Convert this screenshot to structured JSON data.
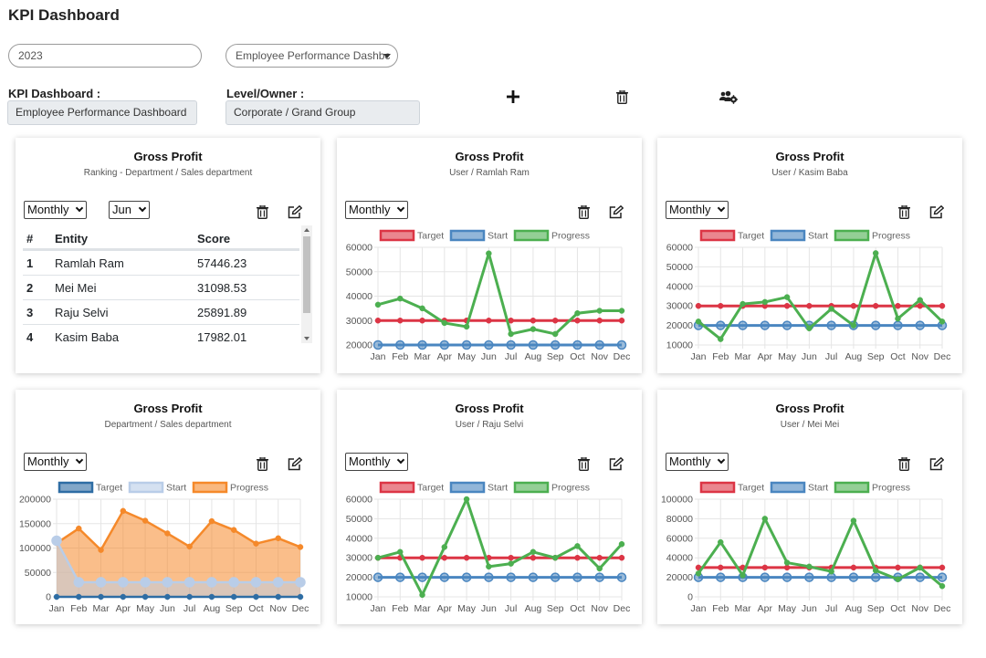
{
  "page": {
    "title": "KPI Dashboard"
  },
  "filters": {
    "year_value": "2023",
    "dashboard_select_value": "Employee Performance Dashbc"
  },
  "info": {
    "dashboard_label": "KPI Dashboard :",
    "dashboard_value": "Employee Performance Dashboard",
    "owner_label": "Level/Owner :",
    "owner_value": "Corporate / Grand Group"
  },
  "toolbar_icons": [
    "plus-icon",
    "trash-icon",
    "users-gear-icon"
  ],
  "months": [
    "Jan",
    "Feb",
    "Mar",
    "Apr",
    "May",
    "Jun",
    "Jul",
    "Aug",
    "Sep",
    "Oct",
    "Nov",
    "Dec"
  ],
  "colors": {
    "target_red": "#dc3545",
    "start_blue": "#4a86c0",
    "progress_green": "#4caf50",
    "progress_orange": "#f5892a",
    "start_light": "#b9cde8"
  },
  "cards": [
    {
      "title": "Gross Profit",
      "subtitle": "Ranking - Department / Sales department",
      "period_select": "Monthly",
      "month_select": "Jun",
      "table": {
        "headers": [
          "#",
          "Entity",
          "Score"
        ],
        "rows": [
          [
            "1",
            "Ramlah Ram",
            "57446.23"
          ],
          [
            "2",
            "Mei Mei",
            "31098.53"
          ],
          [
            "3",
            "Raju Selvi",
            "25891.89"
          ],
          [
            "4",
            "Kasim Baba",
            "17982.01"
          ]
        ]
      }
    },
    {
      "title": "Gross Profit",
      "subtitle": "User / Ramlah Ram",
      "period_select": "Monthly"
    },
    {
      "title": "Gross Profit",
      "subtitle": "User / Kasim Baba",
      "period_select": "Monthly"
    },
    {
      "title": "Gross Profit",
      "subtitle": "Department / Sales department",
      "period_select": "Monthly"
    },
    {
      "title": "Gross Profit",
      "subtitle": "User / Raju Selvi",
      "period_select": "Monthly"
    },
    {
      "title": "Gross Profit",
      "subtitle": "User / Mei Mei",
      "period_select": "Monthly"
    }
  ],
  "chart_data": [
    {
      "type": "line",
      "title": "Gross Profit",
      "categories": [
        "Jan",
        "Feb",
        "Mar",
        "Apr",
        "May",
        "Jun",
        "Jul",
        "Aug",
        "Sep",
        "Oct",
        "Nov",
        "Dec"
      ],
      "yticks": [
        20000,
        30000,
        40000,
        50000,
        60000
      ],
      "ylim": [
        20000,
        60000
      ],
      "legend": "top",
      "series": [
        {
          "name": "Target",
          "color": "#dc3545",
          "values": [
            30000,
            30000,
            30000,
            30000,
            30000,
            30000,
            30000,
            30000,
            30000,
            30000,
            30000,
            30000
          ]
        },
        {
          "name": "Start",
          "color": "#4a86c0",
          "values": [
            20000,
            20000,
            20000,
            20000,
            20000,
            20000,
            20000,
            20000,
            20000,
            20000,
            20000,
            20000
          ]
        },
        {
          "name": "Progress",
          "color": "#4caf50",
          "values": [
            36500,
            39000,
            35000,
            29000,
            27500,
            57500,
            24500,
            26500,
            24500,
            33000,
            34000,
            34000
          ]
        }
      ]
    },
    {
      "type": "line",
      "title": "Gross Profit",
      "categories": [
        "Jan",
        "Feb",
        "Mar",
        "Apr",
        "May",
        "Jun",
        "Jul",
        "Aug",
        "Sep",
        "Oct",
        "Nov",
        "Dec"
      ],
      "yticks": [
        10000,
        20000,
        30000,
        40000,
        50000,
        60000
      ],
      "ylim": [
        10000,
        60000
      ],
      "legend": "top",
      "series": [
        {
          "name": "Target",
          "color": "#dc3545",
          "values": [
            30000,
            30000,
            30000,
            30000,
            30000,
            30000,
            30000,
            30000,
            30000,
            30000,
            30000,
            30000
          ]
        },
        {
          "name": "Start",
          "color": "#4a86c0",
          "values": [
            20000,
            20000,
            20000,
            20000,
            20000,
            20000,
            20000,
            20000,
            20000,
            20000,
            20000,
            20000
          ]
        },
        {
          "name": "Progress",
          "color": "#4caf50",
          "values": [
            22000,
            13000,
            31000,
            32000,
            34500,
            18500,
            28500,
            20000,
            57000,
            23500,
            33000,
            22000
          ]
        }
      ]
    },
    {
      "type": "area",
      "title": "Gross Profit",
      "categories": [
        "Jan",
        "Feb",
        "Mar",
        "Apr",
        "May",
        "Jun",
        "Jul",
        "Aug",
        "Sep",
        "Oct",
        "Nov",
        "Dec"
      ],
      "yticks": [
        0,
        50000,
        100000,
        150000,
        200000
      ],
      "ylim": [
        0,
        200000
      ],
      "legend": "top",
      "series": [
        {
          "name": "Target",
          "color": "#2e6da4",
          "values": [
            0,
            0,
            0,
            0,
            0,
            0,
            0,
            0,
            0,
            0,
            0,
            0
          ]
        },
        {
          "name": "Start",
          "color": "#b9cde8",
          "values": [
            115000,
            30000,
            30000,
            30000,
            30000,
            30000,
            30000,
            30000,
            30000,
            30000,
            30000,
            30000
          ]
        },
        {
          "name": "Progress",
          "color": "#f5892a",
          "values": [
            110000,
            140000,
            96000,
            176000,
            156000,
            130000,
            103000,
            155000,
            137000,
            109000,
            120000,
            102000
          ]
        }
      ]
    },
    {
      "type": "line",
      "title": "Gross Profit",
      "categories": [
        "Jan",
        "Feb",
        "Mar",
        "Apr",
        "May",
        "Jun",
        "Jul",
        "Aug",
        "Sep",
        "Oct",
        "Nov",
        "Dec"
      ],
      "yticks": [
        10000,
        20000,
        30000,
        40000,
        50000,
        60000
      ],
      "ylim": [
        10000,
        60000
      ],
      "legend": "top",
      "series": [
        {
          "name": "Target",
          "color": "#dc3545",
          "values": [
            30000,
            30000,
            30000,
            30000,
            30000,
            30000,
            30000,
            30000,
            30000,
            30000,
            30000,
            30000
          ]
        },
        {
          "name": "Start",
          "color": "#4a86c0",
          "values": [
            20000,
            20000,
            20000,
            20000,
            20000,
            20000,
            20000,
            20000,
            20000,
            20000,
            20000,
            20000
          ]
        },
        {
          "name": "Progress",
          "color": "#4caf50",
          "values": [
            30000,
            33000,
            11000,
            35500,
            60000,
            25500,
            27000,
            33000,
            30000,
            36000,
            24500,
            37000
          ]
        }
      ]
    },
    {
      "type": "line",
      "title": "Gross Profit",
      "categories": [
        "Jan",
        "Feb",
        "Mar",
        "Apr",
        "May",
        "Jun",
        "Jul",
        "Aug",
        "Sep",
        "Oct",
        "Nov",
        "Dec"
      ],
      "yticks": [
        0,
        20000,
        40000,
        60000,
        80000,
        100000
      ],
      "ylim": [
        0,
        100000
      ],
      "legend": "top",
      "series": [
        {
          "name": "Target",
          "color": "#dc3545",
          "values": [
            30000,
            30000,
            30000,
            30000,
            30000,
            30000,
            30000,
            30000,
            30000,
            30000,
            30000,
            30000
          ]
        },
        {
          "name": "Start",
          "color": "#4a86c0",
          "values": [
            20000,
            20000,
            20000,
            20000,
            20000,
            20000,
            20000,
            20000,
            20000,
            20000,
            20000,
            20000
          ]
        },
        {
          "name": "Progress",
          "color": "#4caf50",
          "values": [
            24000,
            56000,
            22000,
            80000,
            35000,
            31000,
            26000,
            78000,
            27000,
            18000,
            30000,
            11000
          ]
        }
      ]
    }
  ]
}
